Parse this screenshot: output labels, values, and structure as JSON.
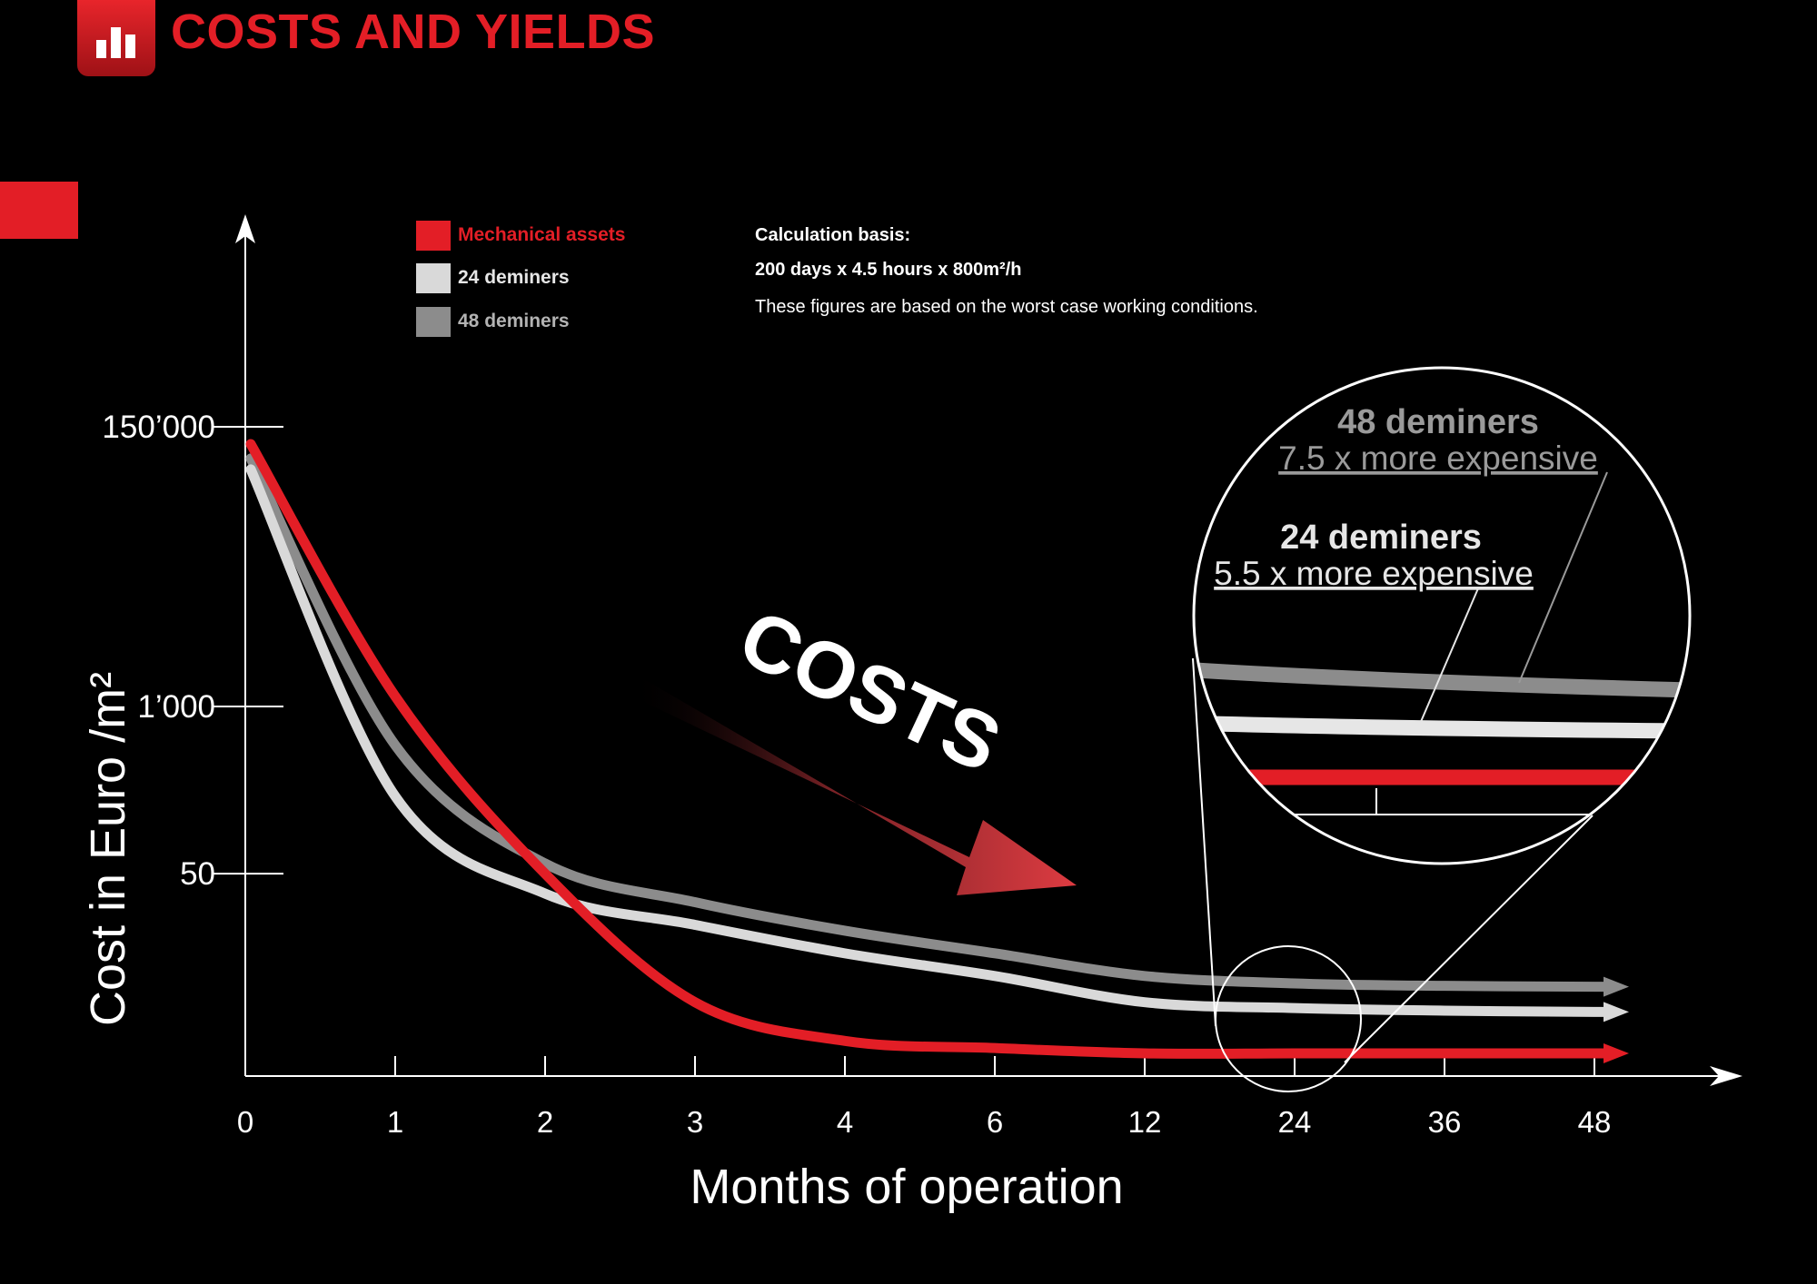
{
  "header": {
    "title": "COSTS AND YIELDS",
    "icon": "bar-chart-icon",
    "accent": "#e31e26"
  },
  "legend": [
    {
      "label": "Mechanical assets",
      "color": "#e31e26"
    },
    {
      "label": "24 deminers",
      "color": "#d9d9d9"
    },
    {
      "label": "48 deminers",
      "color": "#8c8c8c"
    }
  ],
  "calculation": {
    "heading": "Calculation basis:",
    "basis": "200 days x 4.5 hours x 800m²/h",
    "note": "These figures are based on the worst case working conditions."
  },
  "annotation": {
    "arrow_label": "COSTS",
    "zoom": {
      "deminers48": {
        "title": "48 deminers",
        "subtitle": "7.5 x more expensive"
      },
      "deminers24": {
        "title": "24 deminers",
        "subtitle": "5.5 x more expensive"
      }
    }
  },
  "chart_data": {
    "type": "line",
    "xlabel": "Months of operation",
    "ylabel": "Cost in Euro /m²",
    "x": [
      "0",
      "1",
      "2",
      "3",
      "4",
      "6",
      "12",
      "24",
      "36",
      "48"
    ],
    "y_ticks": [
      "150’000",
      "1’000",
      "50"
    ],
    "grid": false,
    "legend_position": "top-left",
    "series": [
      {
        "name": "Mechanical assets",
        "color": "#e31e26",
        "values": [
          110000,
          1200,
          50,
          5,
          2.5,
          2.2,
          2,
          2,
          2,
          2
        ]
      },
      {
        "name": "24 deminers",
        "color": "#d9d9d9",
        "values": [
          70000,
          200,
          35,
          20,
          12,
          8,
          5,
          4.5,
          4.3,
          4.2
        ]
      },
      {
        "name": "48 deminers",
        "color": "#8c8c8c",
        "values": [
          85000,
          500,
          60,
          30,
          18,
          12,
          8,
          7,
          6.7,
          6.6
        ]
      }
    ]
  }
}
